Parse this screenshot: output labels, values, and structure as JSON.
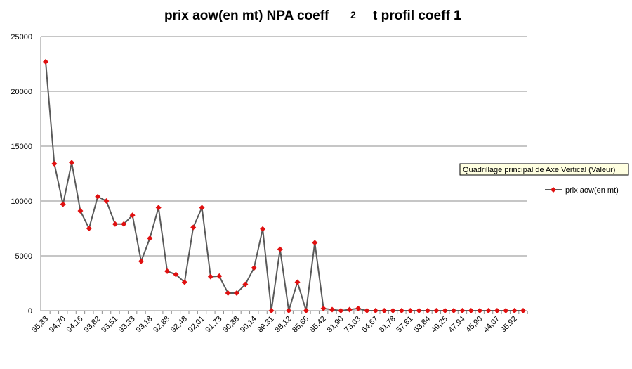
{
  "chart_data": {
    "type": "line",
    "title": "prix aow(en mt) NPA coeff",
    "title_overlay": "2",
    "title_end": "t profil coeff 1",
    "tooltip": "Quadrillage principal de Axe Vertical (Valeur)",
    "categories": [
      "95,33",
      null,
      "94,70",
      null,
      "94,16",
      null,
      "93,82",
      null,
      "93,51",
      null,
      "93,33",
      null,
      "93,18",
      null,
      "92,88",
      null,
      "92,48",
      null,
      "92,01",
      null,
      "91,73",
      null,
      "90,38",
      null,
      "90,14",
      null,
      "89,31",
      null,
      "88,12",
      null,
      "85,66",
      null,
      "85,42",
      null,
      "81,90",
      null,
      "73,03",
      null,
      "64,67",
      null,
      "61,78",
      null,
      "57,61",
      null,
      "53,84",
      null,
      "49,25",
      null,
      "47,94",
      null,
      "45,90",
      null,
      "44,07",
      null,
      "35,92",
      null
    ],
    "series": [
      {
        "name": "prix aow(en mt)",
        "color": "#595959",
        "marker_color": "#e01010",
        "values": [
          22700,
          13400,
          9700,
          13500,
          9100,
          7500,
          10400,
          10000,
          7900,
          7900,
          8700,
          4500,
          6600,
          9400,
          3600,
          3300,
          2600,
          7600,
          9400,
          3100,
          3150,
          1600,
          1600,
          2400,
          3900,
          7450,
          0,
          5600,
          0,
          2600,
          0,
          6200,
          200,
          100,
          0,
          100,
          200,
          0,
          0,
          0,
          0,
          0,
          0,
          0,
          0,
          0,
          0,
          0,
          0,
          0,
          0,
          0,
          0,
          0,
          0,
          0
        ]
      }
    ],
    "ylim": [
      0,
      25000
    ],
    "yticks": [
      0,
      5000,
      10000,
      15000,
      20000,
      25000
    ],
    "grid": true,
    "legend": "right"
  }
}
